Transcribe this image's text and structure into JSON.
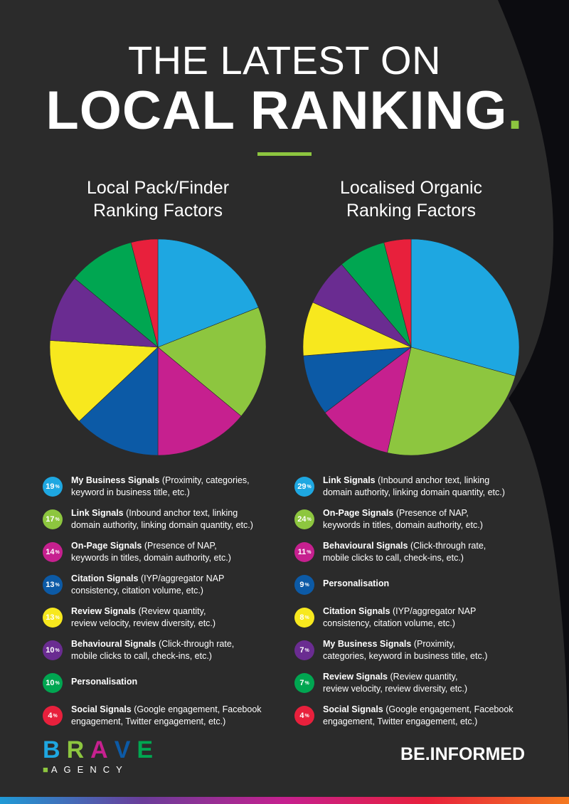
{
  "title": {
    "line1": "THE LATEST ON",
    "line2": "LOCAL RANKING",
    "line2_dot": ".",
    "rule_color": "#8dc63f"
  },
  "chart_data": [
    {
      "type": "pie",
      "title": [
        "Local Pack/Finder",
        "Ranking Factors"
      ],
      "labels": [
        "My Business Signals",
        "Link Signals",
        "On-Page Signals",
        "Citation Signals",
        "Review Signals",
        "Behavioural Signals",
        "Personalisation",
        "Social Signals"
      ],
      "descriptions": [
        [
          "(Proximity, categories,",
          "keyword in business title, etc.)"
        ],
        [
          "(Inbound anchor text, linking",
          "domain authority, linking domain quantity, etc.)"
        ],
        [
          "(Presence of NAP,",
          "keywords in titles, domain authority, etc.)"
        ],
        [
          "(IYP/aggregator NAP",
          "consistency, citation volume, etc.)"
        ],
        [
          "(Review quantity,",
          "review velocity, review diversity, etc.)"
        ],
        [
          "(Click-through rate,",
          "mobile clicks to call, check-ins, etc.)"
        ],
        [],
        [
          "(Google engagement, Facebook",
          "engagement, Twitter engagement, etc.)"
        ]
      ],
      "values": [
        19,
        17,
        14,
        13,
        13,
        10,
        10,
        4
      ],
      "unit": "%",
      "colors": [
        "#1ea7e1",
        "#8dc63f",
        "#c6208f",
        "#0c5aa6",
        "#f7e81e",
        "#6a2c91",
        "#00a651",
        "#e8203c"
      ]
    },
    {
      "type": "pie",
      "title": [
        "Localised Organic",
        "Ranking Factors"
      ],
      "labels": [
        "Link Signals",
        "On-Page Signals",
        "Behavioural Signals",
        "Personalisation",
        "Citation Signals",
        "My Business Signals",
        "Review Signals",
        "Social Signals"
      ],
      "descriptions": [
        [
          "(Inbound anchor text, linking",
          "domain authority, linking domain quantity, etc.)"
        ],
        [
          "(Presence of NAP,",
          "keywords in titles, domain authority, etc.)"
        ],
        [
          "(Click-through rate,",
          "mobile clicks to call, check-ins, etc.)"
        ],
        [],
        [
          "(IYP/aggregator NAP",
          "consistency, citation volume, etc.)"
        ],
        [
          "(Proximity,",
          "categories, keyword in business title, etc.)"
        ],
        [
          "(Review quantity,",
          "review velocity, review diversity, etc.)"
        ],
        [
          "(Google engagement, Facebook",
          "engagement, Twitter engagement, etc.)"
        ]
      ],
      "values": [
        29,
        24,
        11,
        9,
        8,
        7,
        7,
        4
      ],
      "unit": "%",
      "colors": [
        "#1ea7e1",
        "#8dc63f",
        "#c6208f",
        "#0c5aa6",
        "#f7e81e",
        "#6a2c91",
        "#00a651",
        "#e8203c"
      ]
    }
  ],
  "logo": {
    "word": [
      "B",
      "R",
      "A",
      "V",
      "E"
    ],
    "word_colors": [
      "#1ea7e1",
      "#8dc63f",
      "#c6208f",
      "#0c5aa6",
      "#00a651"
    ],
    "sub": "AGENCY"
  },
  "slogan": "BE.INFORMED",
  "colors": {
    "background": "#2b2b2b",
    "page_edge": "#0c0c10"
  }
}
